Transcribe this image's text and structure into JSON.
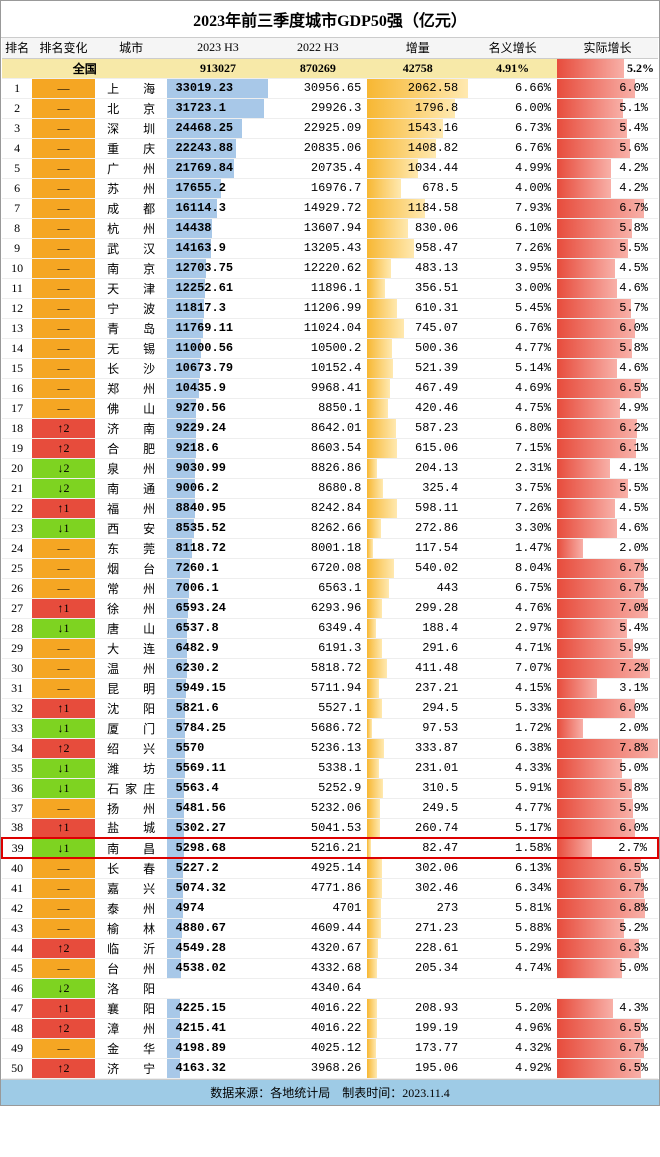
{
  "title": "2023年前三季度城市GDP50强（亿元）",
  "footer": "数据来源：各地统计局　制表时间：2023.11.4",
  "headers": {
    "rank": "排名",
    "change": "排名变化",
    "city": "城市",
    "h2023": "2023 H3",
    "h2022": "2022 H3",
    "inc": "增量",
    "nom": "名义增长",
    "real": "实际增长"
  },
  "national": {
    "label": "全国",
    "h2023": "913027",
    "h2022": "870269",
    "inc": "42758",
    "nom": "4.91%",
    "real": "5.2%"
  },
  "style": {
    "change_colors": {
      "same": "#f5a623",
      "up": "#e74c3c",
      "down": "#7ed321"
    },
    "bar2023_color": "#a8c8e8",
    "inc_gradient": "linear-gradient(to right,#f7b733,#ffe9b0)",
    "real_gradient": "linear-gradient(to right,#e74c3c,#f8b0a8)",
    "bar2023_max": 33019.23,
    "inc_max": 2062.58,
    "real_max": 7.8
  },
  "rows": [
    {
      "rank": 1,
      "chg": "—",
      "ct": "same",
      "city": "上　海",
      "h2023": "33019.23",
      "h2022": "30956.65",
      "inc": "2062.58",
      "nom": "6.66%",
      "real": "6.0%",
      "rv": 6.0,
      "hl": false
    },
    {
      "rank": 2,
      "chg": "—",
      "ct": "same",
      "city": "北　京",
      "h2023": "31723.1",
      "h2022": "29926.3",
      "inc": "1796.8",
      "nom": "6.00%",
      "real": "5.1%",
      "rv": 5.1,
      "hl": false
    },
    {
      "rank": 3,
      "chg": "—",
      "ct": "same",
      "city": "深　圳",
      "h2023": "24468.25",
      "h2022": "22925.09",
      "inc": "1543.16",
      "nom": "6.73%",
      "real": "5.4%",
      "rv": 5.4,
      "hl": false
    },
    {
      "rank": 4,
      "chg": "—",
      "ct": "same",
      "city": "重　庆",
      "h2023": "22243.88",
      "h2022": "20835.06",
      "inc": "1408.82",
      "nom": "6.76%",
      "real": "5.6%",
      "rv": 5.6,
      "hl": false
    },
    {
      "rank": 5,
      "chg": "—",
      "ct": "same",
      "city": "广　州",
      "h2023": "21769.84",
      "h2022": "20735.4",
      "inc": "1034.44",
      "nom": "4.99%",
      "real": "4.2%",
      "rv": 4.2,
      "hl": false
    },
    {
      "rank": 6,
      "chg": "—",
      "ct": "same",
      "city": "苏　州",
      "h2023": "17655.2",
      "h2022": "16976.7",
      "inc": "678.5",
      "nom": "4.00%",
      "real": "4.2%",
      "rv": 4.2,
      "hl": false
    },
    {
      "rank": 7,
      "chg": "—",
      "ct": "same",
      "city": "成　都",
      "h2023": "16114.3",
      "h2022": "14929.72",
      "inc": "1184.58",
      "nom": "7.93%",
      "real": "6.7%",
      "rv": 6.7,
      "hl": false
    },
    {
      "rank": 8,
      "chg": "—",
      "ct": "same",
      "city": "杭　州",
      "h2023": "14438",
      "h2022": "13607.94",
      "inc": "830.06",
      "nom": "6.10%",
      "real": "5.8%",
      "rv": 5.8,
      "hl": false
    },
    {
      "rank": 9,
      "chg": "—",
      "ct": "same",
      "city": "武　汉",
      "h2023": "14163.9",
      "h2022": "13205.43",
      "inc": "958.47",
      "nom": "7.26%",
      "real": "5.5%",
      "rv": 5.5,
      "hl": false
    },
    {
      "rank": 10,
      "chg": "—",
      "ct": "same",
      "city": "南　京",
      "h2023": "12703.75",
      "h2022": "12220.62",
      "inc": "483.13",
      "nom": "3.95%",
      "real": "4.5%",
      "rv": 4.5,
      "hl": false
    },
    {
      "rank": 11,
      "chg": "—",
      "ct": "same",
      "city": "天　津",
      "h2023": "12252.61",
      "h2022": "11896.1",
      "inc": "356.51",
      "nom": "3.00%",
      "real": "4.6%",
      "rv": 4.6,
      "hl": false
    },
    {
      "rank": 12,
      "chg": "—",
      "ct": "same",
      "city": "宁　波",
      "h2023": "11817.3",
      "h2022": "11206.99",
      "inc": "610.31",
      "nom": "5.45%",
      "real": "5.7%",
      "rv": 5.7,
      "hl": false
    },
    {
      "rank": 13,
      "chg": "—",
      "ct": "same",
      "city": "青　岛",
      "h2023": "11769.11",
      "h2022": "11024.04",
      "inc": "745.07",
      "nom": "6.76%",
      "real": "6.0%",
      "rv": 6.0,
      "hl": false
    },
    {
      "rank": 14,
      "chg": "—",
      "ct": "same",
      "city": "无　锡",
      "h2023": "11000.56",
      "h2022": "10500.2",
      "inc": "500.36",
      "nom": "4.77%",
      "real": "5.8%",
      "rv": 5.8,
      "hl": false
    },
    {
      "rank": 15,
      "chg": "—",
      "ct": "same",
      "city": "长　沙",
      "h2023": "10673.79",
      "h2022": "10152.4",
      "inc": "521.39",
      "nom": "5.14%",
      "real": "4.6%",
      "rv": 4.6,
      "hl": false
    },
    {
      "rank": 16,
      "chg": "—",
      "ct": "same",
      "city": "郑　州",
      "h2023": "10435.9",
      "h2022": "9968.41",
      "inc": "467.49",
      "nom": "4.69%",
      "real": "6.5%",
      "rv": 6.5,
      "hl": false
    },
    {
      "rank": 17,
      "chg": "—",
      "ct": "same",
      "city": "佛　山",
      "h2023": "9270.56",
      "h2022": "8850.1",
      "inc": "420.46",
      "nom": "4.75%",
      "real": "4.9%",
      "rv": 4.9,
      "hl": false
    },
    {
      "rank": 18,
      "chg": "↑2",
      "ct": "up",
      "city": "济　南",
      "h2023": "9229.24",
      "h2022": "8642.01",
      "inc": "587.23",
      "nom": "6.80%",
      "real": "6.2%",
      "rv": 6.2,
      "hl": false
    },
    {
      "rank": 19,
      "chg": "↑2",
      "ct": "up",
      "city": "合　肥",
      "h2023": "9218.6",
      "h2022": "8603.54",
      "inc": "615.06",
      "nom": "7.15%",
      "real": "6.1%",
      "rv": 6.1,
      "hl": false
    },
    {
      "rank": 20,
      "chg": "↓2",
      "ct": "down",
      "city": "泉　州",
      "h2023": "9030.99",
      "h2022": "8826.86",
      "inc": "204.13",
      "nom": "2.31%",
      "real": "4.1%",
      "rv": 4.1,
      "hl": false
    },
    {
      "rank": 21,
      "chg": "↓2",
      "ct": "down",
      "city": "南　通",
      "h2023": "9006.2",
      "h2022": "8680.8",
      "inc": "325.4",
      "nom": "3.75%",
      "real": "5.5%",
      "rv": 5.5,
      "hl": false
    },
    {
      "rank": 22,
      "chg": "↑1",
      "ct": "up",
      "city": "福　州",
      "h2023": "8840.95",
      "h2022": "8242.84",
      "inc": "598.11",
      "nom": "7.26%",
      "real": "4.5%",
      "rv": 4.5,
      "hl": false
    },
    {
      "rank": 23,
      "chg": "↓1",
      "ct": "down",
      "city": "西　安",
      "h2023": "8535.52",
      "h2022": "8262.66",
      "inc": "272.86",
      "nom": "3.30%",
      "real": "4.6%",
      "rv": 4.6,
      "hl": false
    },
    {
      "rank": 24,
      "chg": "—",
      "ct": "same",
      "city": "东　莞",
      "h2023": "8118.72",
      "h2022": "8001.18",
      "inc": "117.54",
      "nom": "1.47%",
      "real": "2.0%",
      "rv": 2.0,
      "hl": false
    },
    {
      "rank": 25,
      "chg": "—",
      "ct": "same",
      "city": "烟　台",
      "h2023": "7260.1",
      "h2022": "6720.08",
      "inc": "540.02",
      "nom": "8.04%",
      "real": "6.7%",
      "rv": 6.7,
      "hl": false
    },
    {
      "rank": 26,
      "chg": "—",
      "ct": "same",
      "city": "常　州",
      "h2023": "7006.1",
      "h2022": "6563.1",
      "inc": "443",
      "nom": "6.75%",
      "real": "6.7%",
      "rv": 6.7,
      "hl": false
    },
    {
      "rank": 27,
      "chg": "↑1",
      "ct": "up",
      "city": "徐　州",
      "h2023": "6593.24",
      "h2022": "6293.96",
      "inc": "299.28",
      "nom": "4.76%",
      "real": "7.0%",
      "rv": 7.0,
      "hl": false
    },
    {
      "rank": 28,
      "chg": "↓1",
      "ct": "down",
      "city": "唐　山",
      "h2023": "6537.8",
      "h2022": "6349.4",
      "inc": "188.4",
      "nom": "2.97%",
      "real": "5.4%",
      "rv": 5.4,
      "hl": false
    },
    {
      "rank": 29,
      "chg": "—",
      "ct": "same",
      "city": "大　连",
      "h2023": "6482.9",
      "h2022": "6191.3",
      "inc": "291.6",
      "nom": "4.71%",
      "real": "5.9%",
      "rv": 5.9,
      "hl": false
    },
    {
      "rank": 30,
      "chg": "—",
      "ct": "same",
      "city": "温　州",
      "h2023": "6230.2",
      "h2022": "5818.72",
      "inc": "411.48",
      "nom": "7.07%",
      "real": "7.2%",
      "rv": 7.2,
      "hl": false
    },
    {
      "rank": 31,
      "chg": "—",
      "ct": "same",
      "city": "昆　明",
      "h2023": "5949.15",
      "h2022": "5711.94",
      "inc": "237.21",
      "nom": "4.15%",
      "real": "3.1%",
      "rv": 3.1,
      "hl": false
    },
    {
      "rank": 32,
      "chg": "↑1",
      "ct": "up",
      "city": "沈　阳",
      "h2023": "5821.6",
      "h2022": "5527.1",
      "inc": "294.5",
      "nom": "5.33%",
      "real": "6.0%",
      "rv": 6.0,
      "hl": false
    },
    {
      "rank": 33,
      "chg": "↓1",
      "ct": "down",
      "city": "厦　门",
      "h2023": "5784.25",
      "h2022": "5686.72",
      "inc": "97.53",
      "nom": "1.72%",
      "real": "2.0%",
      "rv": 2.0,
      "hl": false
    },
    {
      "rank": 34,
      "chg": "↑2",
      "ct": "up",
      "city": "绍　兴",
      "h2023": "5570",
      "h2022": "5236.13",
      "inc": "333.87",
      "nom": "6.38%",
      "real": "7.8%",
      "rv": 7.8,
      "hl": false
    },
    {
      "rank": 35,
      "chg": "↓1",
      "ct": "down",
      "city": "潍　坊",
      "h2023": "5569.11",
      "h2022": "5338.1",
      "inc": "231.01",
      "nom": "4.33%",
      "real": "5.0%",
      "rv": 5.0,
      "hl": false
    },
    {
      "rank": 36,
      "chg": "↓1",
      "ct": "down",
      "city": "石家庄",
      "h2023": "5563.4",
      "h2022": "5252.9",
      "inc": "310.5",
      "nom": "5.91%",
      "real": "5.8%",
      "rv": 5.8,
      "hl": false
    },
    {
      "rank": 37,
      "chg": "—",
      "ct": "same",
      "city": "扬　州",
      "h2023": "5481.56",
      "h2022": "5232.06",
      "inc": "249.5",
      "nom": "4.77%",
      "real": "5.9%",
      "rv": 5.9,
      "hl": false
    },
    {
      "rank": 38,
      "chg": "↑1",
      "ct": "up",
      "city": "盐　城",
      "h2023": "5302.27",
      "h2022": "5041.53",
      "inc": "260.74",
      "nom": "5.17%",
      "real": "6.0%",
      "rv": 6.0,
      "hl": false
    },
    {
      "rank": 39,
      "chg": "↓1",
      "ct": "down",
      "city": "南　昌",
      "h2023": "5298.68",
      "h2022": "5216.21",
      "inc": "82.47",
      "nom": "1.58%",
      "real": "2.7%",
      "rv": 2.7,
      "hl": true
    },
    {
      "rank": 40,
      "chg": "—",
      "ct": "same",
      "city": "长　春",
      "h2023": "5227.2",
      "h2022": "4925.14",
      "inc": "302.06",
      "nom": "6.13%",
      "real": "6.5%",
      "rv": 6.5,
      "hl": false
    },
    {
      "rank": 41,
      "chg": "—",
      "ct": "same",
      "city": "嘉　兴",
      "h2023": "5074.32",
      "h2022": "4771.86",
      "inc": "302.46",
      "nom": "6.34%",
      "real": "6.7%",
      "rv": 6.7,
      "hl": false
    },
    {
      "rank": 42,
      "chg": "—",
      "ct": "same",
      "city": "泰　州",
      "h2023": "4974",
      "h2022": "4701",
      "inc": "273",
      "nom": "5.81%",
      "real": "6.8%",
      "rv": 6.8,
      "hl": false
    },
    {
      "rank": 43,
      "chg": "—",
      "ct": "same",
      "city": "榆　林",
      "h2023": "4880.67",
      "h2022": "4609.44",
      "inc": "271.23",
      "nom": "5.88%",
      "real": "5.2%",
      "rv": 5.2,
      "hl": false
    },
    {
      "rank": 44,
      "chg": "↑2",
      "ct": "up",
      "city": "临　沂",
      "h2023": "4549.28",
      "h2022": "4320.67",
      "inc": "228.61",
      "nom": "5.29%",
      "real": "6.3%",
      "rv": 6.3,
      "hl": false
    },
    {
      "rank": 45,
      "chg": "—",
      "ct": "same",
      "city": "台　州",
      "h2023": "4538.02",
      "h2022": "4332.68",
      "inc": "205.34",
      "nom": "4.74%",
      "real": "5.0%",
      "rv": 5.0,
      "hl": false
    },
    {
      "rank": 46,
      "chg": "↓2",
      "ct": "down",
      "city": "洛　阳",
      "h2023": "",
      "h2022": "4340.64",
      "inc": "",
      "nom": "",
      "real": "",
      "rv": 0,
      "hl": false
    },
    {
      "rank": 47,
      "chg": "↑1",
      "ct": "up",
      "city": "襄　阳",
      "h2023": "4225.15",
      "h2022": "4016.22",
      "inc": "208.93",
      "nom": "5.20%",
      "real": "4.3%",
      "rv": 4.3,
      "hl": false
    },
    {
      "rank": 48,
      "chg": "↑2",
      "ct": "up",
      "city": "漳　州",
      "h2023": "4215.41",
      "h2022": "4016.22",
      "inc": "199.19",
      "nom": "4.96%",
      "real": "6.5%",
      "rv": 6.5,
      "hl": false
    },
    {
      "rank": 49,
      "chg": "—",
      "ct": "same",
      "city": "金　华",
      "h2023": "4198.89",
      "h2022": "4025.12",
      "inc": "173.77",
      "nom": "4.32%",
      "real": "6.7%",
      "rv": 6.7,
      "hl": false
    },
    {
      "rank": 50,
      "chg": "↑2",
      "ct": "up",
      "city": "济　宁",
      "h2023": "4163.32",
      "h2022": "3968.26",
      "inc": "195.06",
      "nom": "4.92%",
      "real": "6.5%",
      "rv": 6.5,
      "hl": false
    }
  ]
}
